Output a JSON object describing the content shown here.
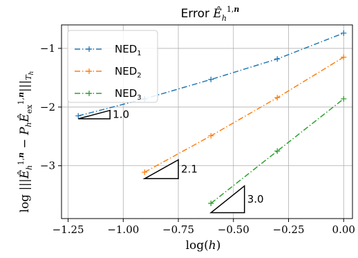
{
  "chart_data": {
    "type": "line",
    "title": "Error Ê_h^{1,n}",
    "xlabel": "log(h)",
    "ylabel": "log |||Ê_h^{1,n} − P_h Ê_ex^{1,n}|||_{T_h}",
    "xlim": [
      -1.28,
      0.04
    ],
    "ylim": [
      -3.9,
      -0.6
    ],
    "xticks": [
      -1.25,
      -1.0,
      -0.75,
      -0.5,
      -0.25,
      0.0
    ],
    "xtick_labels": [
      "−1.25",
      "−1.00",
      "−0.75",
      "−0.50",
      "−0.25",
      "0.00"
    ],
    "yticks": [
      -3,
      -2,
      -1
    ],
    "ytick_labels": [
      "−3",
      "−2",
      "−1"
    ],
    "grid": true,
    "legend_position": "upper-left",
    "series": [
      {
        "name": "NED1",
        "name_base": "NED",
        "name_sub": "1",
        "color": "#1f77b4",
        "x": [
          -1.204,
          -0.903,
          -0.602,
          -0.301,
          0.0
        ],
        "y": [
          -2.15,
          -1.86,
          -1.53,
          -1.18,
          -0.74
        ]
      },
      {
        "name": "NED2",
        "name_base": "NED",
        "name_sub": "2",
        "color": "#ff7f0e",
        "x": [
          -0.903,
          -0.602,
          -0.301,
          0.0
        ],
        "y": [
          -3.11,
          -2.49,
          -1.84,
          -1.15
        ]
      },
      {
        "name": "NED3",
        "name_base": "NED",
        "name_sub": "3",
        "color": "#2ca02c",
        "x": [
          -0.602,
          -0.301,
          0.0
        ],
        "y": [
          -3.64,
          -2.75,
          -1.86
        ]
      }
    ],
    "slope_triangles": [
      {
        "label": "1.0",
        "x0": -1.204,
        "x1": -1.06,
        "y0": -2.2,
        "slope": 1.0
      },
      {
        "label": "2.1",
        "x0": -0.903,
        "x1": -0.75,
        "y0": -3.22,
        "slope": 2.1
      },
      {
        "label": "3.0",
        "x0": -0.602,
        "x1": -0.45,
        "y0": -3.8,
        "slope": 3.0
      }
    ]
  }
}
